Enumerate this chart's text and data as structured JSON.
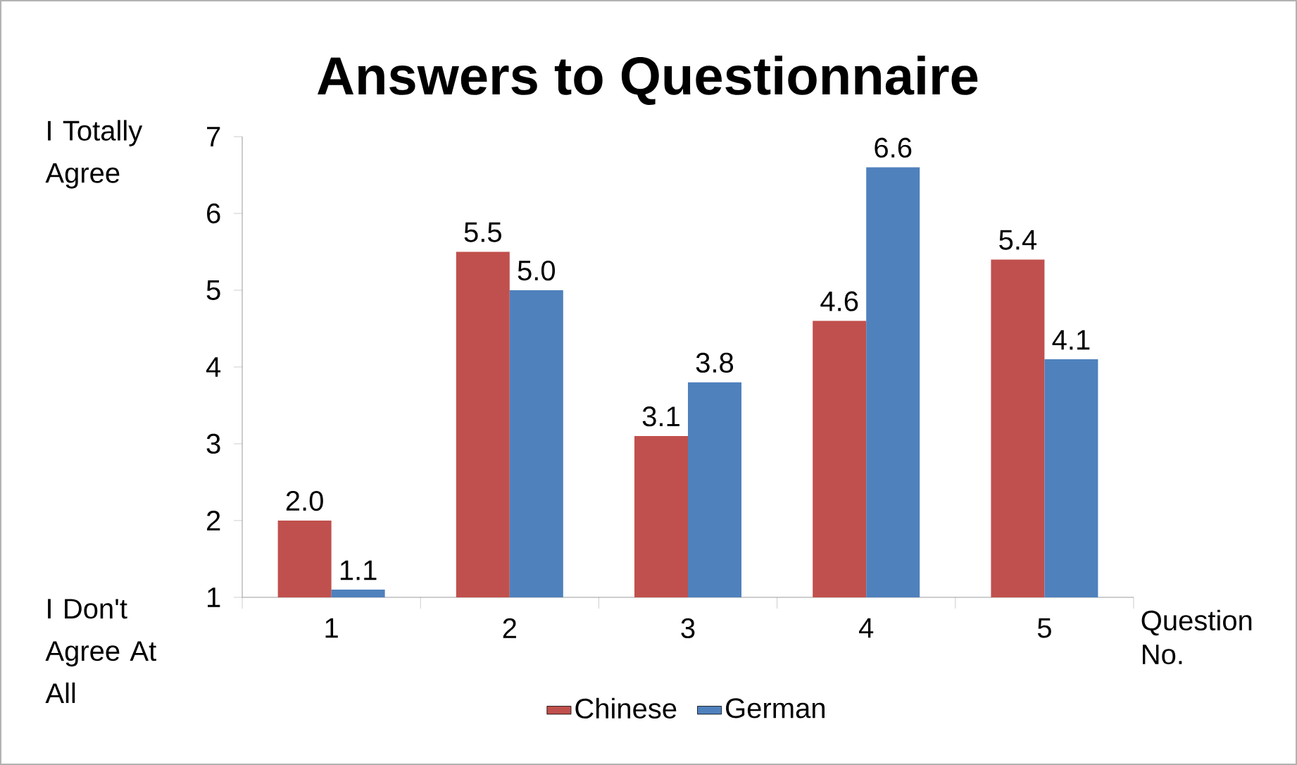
{
  "chart_data": {
    "type": "bar",
    "title": "Answers to Questionnaire",
    "xlabel": "Question No.",
    "annotations": [
      "I Totally Agree",
      "I Don't Agree At All"
    ],
    "categories": [
      "1",
      "2",
      "3",
      "4",
      "5"
    ],
    "series": [
      {
        "name": "Chinese",
        "color": "#c0504d",
        "values": [
          2.0,
          5.5,
          3.1,
          4.6,
          5.4
        ],
        "value_labels": [
          "2.0",
          "5.5",
          "3.1",
          "4.6",
          "5.4"
        ]
      },
      {
        "name": "German",
        "color": "#4f81bd",
        "values": [
          1.1,
          5.0,
          3.8,
          6.6,
          4.1
        ],
        "value_labels": [
          "1.1",
          "5.0",
          "3.8",
          "6.6",
          "4.1"
        ]
      }
    ],
    "ylim": [
      1,
      7
    ],
    "yticks": [
      1,
      2,
      3,
      4,
      5,
      6,
      7
    ],
    "grid": false,
    "legend": "bottom",
    "data_labels": true
  }
}
